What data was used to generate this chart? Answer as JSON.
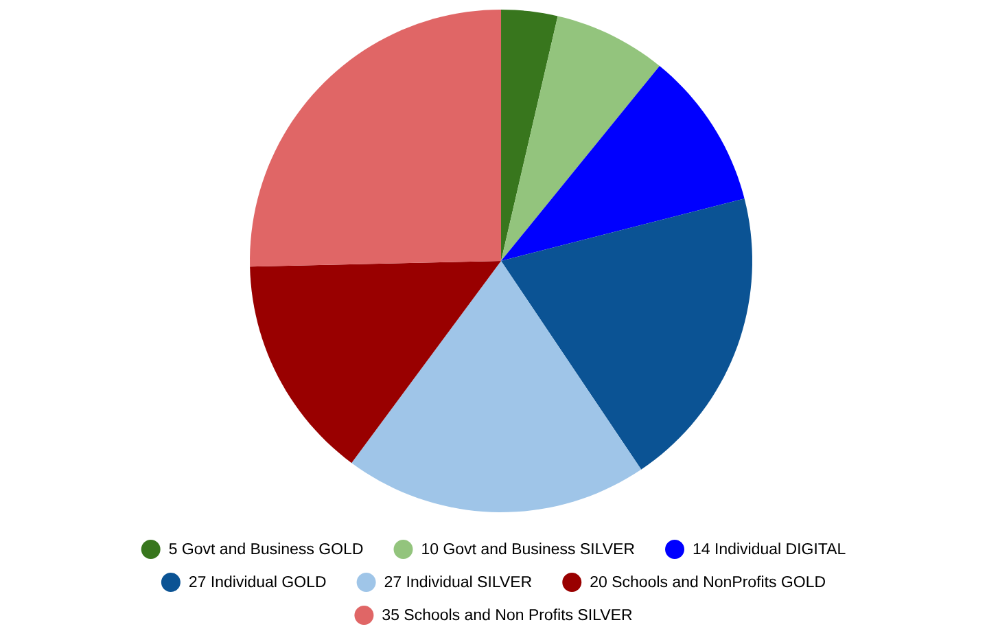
{
  "chart_data": {
    "type": "pie",
    "categories": [
      "5 Govt and Business GOLD",
      "10 Govt and Business SILVER",
      "14 Individual DIGITAL",
      "27 Individual GOLD",
      "27 Individual SILVER",
      "20 Schools and NonProfits GOLD",
      "35 Schools and Non Profits SILVER"
    ],
    "values": [
      5,
      10,
      14,
      27,
      27,
      20,
      35
    ],
    "colors": [
      "#38761d",
      "#93c47d",
      "#0000ff",
      "#0b5394",
      "#9fc5e8",
      "#990000",
      "#e06666"
    ],
    "legend": "bottom"
  }
}
